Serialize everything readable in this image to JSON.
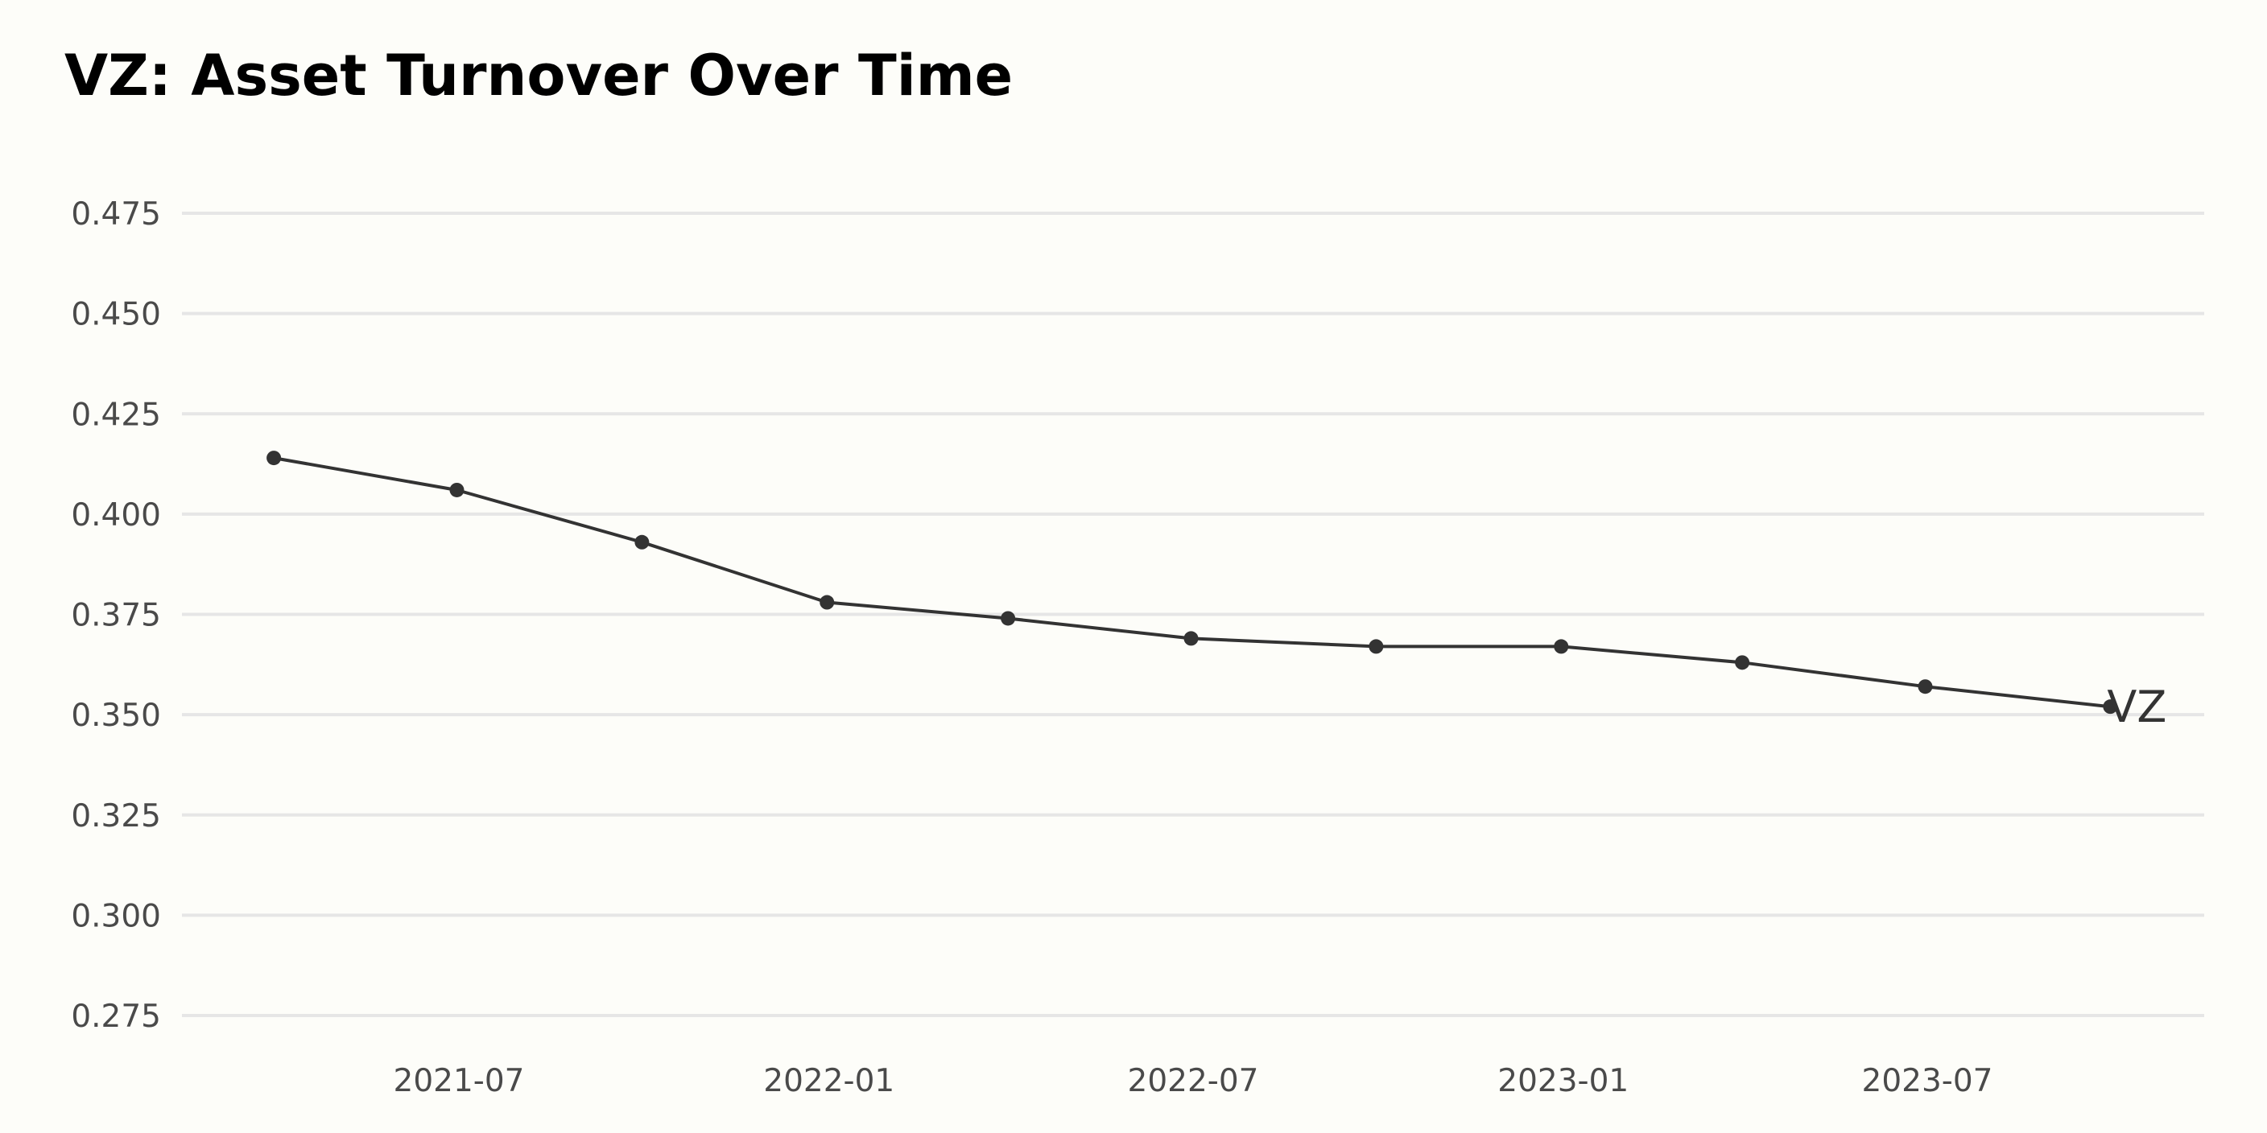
{
  "chart_data": {
    "type": "line",
    "title": "VZ: Asset Turnover Over Time",
    "xlabel": "",
    "ylabel": "",
    "ylim": [
      0.27,
      0.48
    ],
    "yticks": [
      "0.275",
      "0.300",
      "0.325",
      "0.350",
      "0.375",
      "0.400",
      "0.425",
      "0.450",
      "0.475"
    ],
    "xticks": [
      "2021-07",
      "2022-01",
      "2022-07",
      "2023-01",
      "2023-07"
    ],
    "grid": "horizontal",
    "legend": "none",
    "series": [
      {
        "name": "VZ",
        "color": "#333333",
        "points": [
          {
            "date": "2021-03-31",
            "value": 0.414
          },
          {
            "date": "2021-06-30",
            "value": 0.406
          },
          {
            "date": "2021-09-30",
            "value": 0.393
          },
          {
            "date": "2021-12-31",
            "value": 0.378
          },
          {
            "date": "2022-03-31",
            "value": 0.374
          },
          {
            "date": "2022-06-30",
            "value": 0.369
          },
          {
            "date": "2022-09-30",
            "value": 0.367
          },
          {
            "date": "2022-12-31",
            "value": 0.367
          },
          {
            "date": "2023-03-31",
            "value": 0.363
          },
          {
            "date": "2023-06-30",
            "value": 0.357
          },
          {
            "date": "2023-09-30",
            "value": 0.352
          }
        ]
      }
    ]
  }
}
